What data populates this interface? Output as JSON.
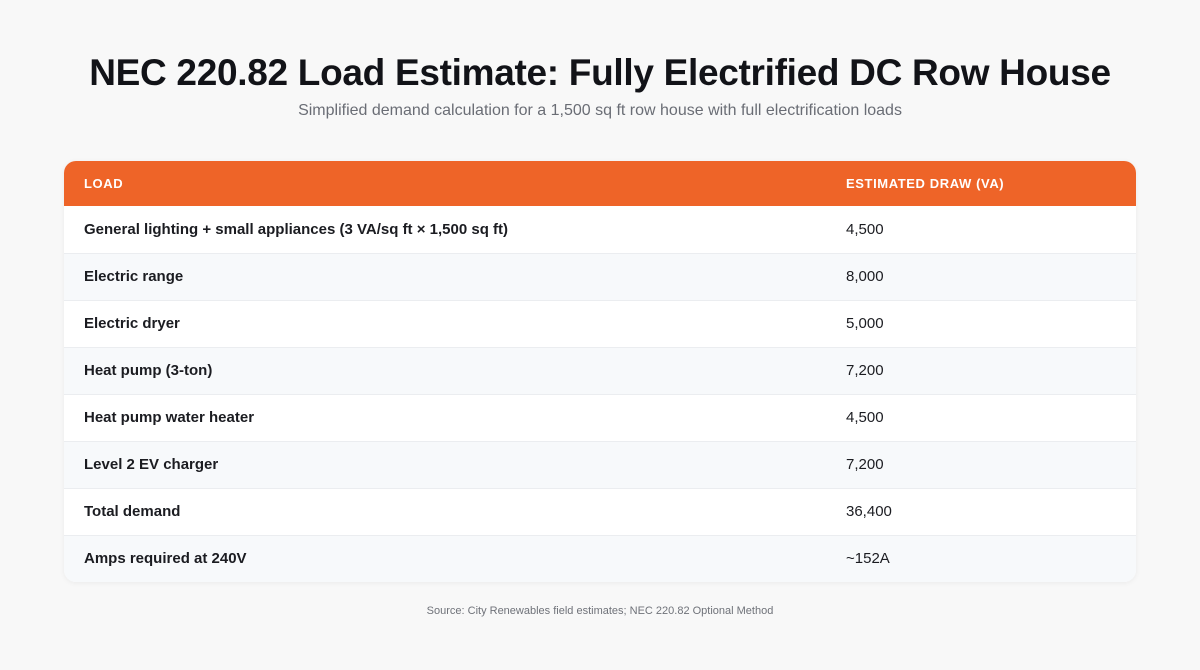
{
  "header": {
    "title": "NEC 220.82 Load Estimate: Fully Electrified DC Row House",
    "subtitle": "Simplified demand calculation for a 1,500 sq ft row house with full electrification loads"
  },
  "table": {
    "columns": [
      "LOAD",
      "ESTIMATED DRAW (VA)"
    ],
    "rows": [
      {
        "load": "General lighting + small appliances (3 VA/sq ft × 1,500 sq ft)",
        "value": "4,500"
      },
      {
        "load": "Electric range",
        "value": "8,000"
      },
      {
        "load": "Electric dryer",
        "value": "5,000"
      },
      {
        "load": "Heat pump (3-ton)",
        "value": "7,200"
      },
      {
        "load": "Heat pump water heater",
        "value": "4,500"
      },
      {
        "load": "Level 2 EV charger",
        "value": "7,200"
      },
      {
        "load": "Total demand",
        "value": "36,400"
      },
      {
        "load": "Amps required at 240V",
        "value": "~152A"
      }
    ]
  },
  "footer": {
    "source": "Source: City Renewables field estimates; NEC 220.82 Optional Method"
  },
  "colors": {
    "header_accent": "#ee6428",
    "background": "#f8f8f8"
  }
}
